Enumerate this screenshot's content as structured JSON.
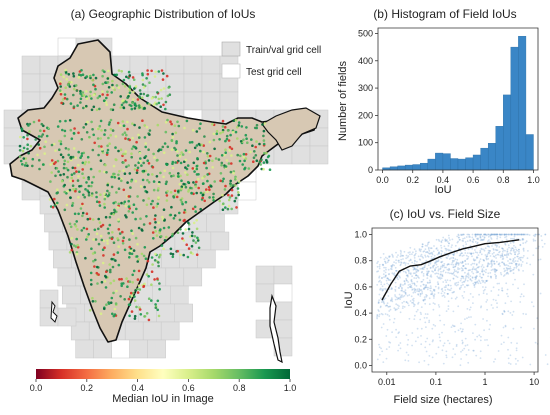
{
  "panel_a": {
    "title": "(a) Geographic Distribution of IoUs",
    "legend": [
      {
        "label": "Train/val grid cell",
        "color": "#e0e0e0"
      },
      {
        "label": "Test grid cell",
        "color": "#ffffff"
      }
    ],
    "colorbar": {
      "label": "Median IoU in Image",
      "ticks": [
        "0.0",
        "0.2",
        "0.4",
        "0.6",
        "0.8",
        "1.0"
      ],
      "colors": [
        "#7f0021",
        "#d73027",
        "#f46d43",
        "#fdae61",
        "#fee08b",
        "#ffffbf",
        "#d9ef8b",
        "#a6d96a",
        "#66bd63",
        "#1a9850",
        "#006837"
      ]
    },
    "land_color": "#d7c8b3"
  },
  "chart_data": [
    {
      "type": "bar",
      "title": "(b) Histogram of Field IoUs",
      "xlabel": "IoU",
      "ylabel": "Number of fields",
      "xlim": [
        -0.03,
        1.03
      ],
      "ylim": [
        0,
        520
      ],
      "xticks": [
        "0.0",
        "0.2",
        "0.4",
        "0.6",
        "0.8",
        "1.0"
      ],
      "yticks": [
        "0",
        "100",
        "200",
        "300",
        "400",
        "500"
      ],
      "bin_width": 0.05,
      "bin_starts": [
        0.0,
        0.05,
        0.1,
        0.15,
        0.2,
        0.25,
        0.3,
        0.35,
        0.4,
        0.45,
        0.5,
        0.55,
        0.6,
        0.65,
        0.7,
        0.75,
        0.8,
        0.85,
        0.9,
        0.95
      ],
      "values": [
        8,
        12,
        15,
        18,
        20,
        25,
        40,
        62,
        60,
        42,
        40,
        45,
        55,
        80,
        98,
        160,
        275,
        450,
        490,
        130
      ],
      "color": "#3a86c6"
    },
    {
      "type": "scatter",
      "title": "(c) IoU vs. Field Size",
      "xlabel": "Field size (hectares)",
      "ylabel": "IoU",
      "xscale": "log",
      "xlim": [
        0.005,
        12
      ],
      "ylim": [
        -0.05,
        1.05
      ],
      "xticks": [
        "0.01",
        "0.1",
        "1",
        "10"
      ],
      "yticks": [
        "0.0",
        "0.2",
        "0.4",
        "0.6",
        "0.8",
        "1.0"
      ],
      "point_color": "#7fa9d6",
      "trend_line": {
        "x": [
          0.008,
          0.012,
          0.018,
          0.03,
          0.05,
          0.08,
          0.12,
          0.2,
          0.35,
          0.6,
          1.0,
          2.0,
          5.0
        ],
        "y": [
          0.5,
          0.62,
          0.72,
          0.76,
          0.77,
          0.8,
          0.83,
          0.86,
          0.89,
          0.91,
          0.93,
          0.94,
          0.96
        ]
      }
    }
  ]
}
